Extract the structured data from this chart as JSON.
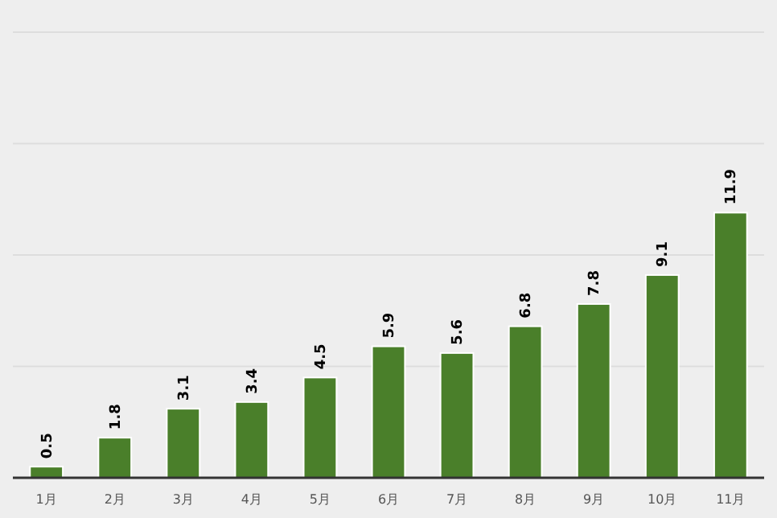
{
  "chart_data": {
    "type": "bar",
    "categories": [
      "1月",
      "2月",
      "3月",
      "4月",
      "5月",
      "6月",
      "7月",
      "8月",
      "9月",
      "10月",
      "11月"
    ],
    "values": [
      0.5,
      1.8,
      3.1,
      3.4,
      4.5,
      5.9,
      5.6,
      6.8,
      7.8,
      9.1,
      11.9
    ],
    "color": "#4a7f2a",
    "data_labels": true,
    "grid": "y",
    "tick_labels": "x",
    "ylim": [
      0,
      20
    ],
    "yticks": [
      {
        "value": 0,
        "label": null
      },
      {
        "value": 5,
        "label": null
      },
      {
        "value": 10,
        "label": null
      },
      {
        "value": 15,
        "label": null
      },
      {
        "value": 20,
        "label": null
      }
    ]
  }
}
